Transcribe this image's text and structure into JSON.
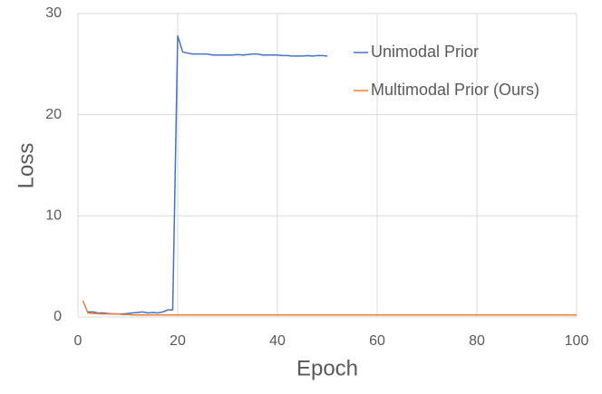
{
  "chart_data": {
    "type": "line",
    "xlabel": "Epoch",
    "ylabel": "Loss",
    "x": [
      1,
      2,
      3,
      4,
      5,
      6,
      7,
      8,
      9,
      10,
      11,
      12,
      13,
      14,
      15,
      16,
      17,
      18,
      19,
      20,
      21,
      22,
      23,
      24,
      25,
      26,
      27,
      28,
      29,
      30,
      31,
      32,
      33,
      34,
      35,
      36,
      37,
      38,
      39,
      40,
      41,
      42,
      43,
      44,
      45,
      46,
      47,
      48,
      49,
      50,
      51,
      52,
      53,
      54,
      55,
      56,
      57,
      58,
      59,
      60,
      61,
      62,
      63,
      64,
      65,
      66,
      67,
      68,
      69,
      70,
      71,
      72,
      73,
      74,
      75,
      76,
      77,
      78,
      79,
      80,
      81,
      82,
      83,
      84,
      85,
      86,
      87,
      88,
      89,
      90,
      91,
      92,
      93,
      94,
      95,
      96,
      97,
      98,
      99,
      100
    ],
    "series": [
      {
        "name": "Unimodal Prior",
        "color": "#4472c4",
        "values": [
          null,
          0.5,
          0.5,
          0.4,
          0.4,
          0.35,
          0.3,
          0.3,
          0.3,
          0.35,
          0.4,
          0.45,
          0.5,
          0.4,
          0.45,
          0.4,
          0.5,
          0.7,
          0.7,
          27.8,
          26.2,
          26.1,
          26.0,
          26.0,
          26.0,
          26.0,
          25.9,
          25.9,
          25.9,
          25.9,
          25.9,
          25.95,
          25.9,
          25.95,
          26.0,
          26.0,
          25.9,
          25.9,
          25.9,
          25.9,
          25.85,
          25.85,
          25.8,
          25.8,
          25.8,
          25.85,
          25.8,
          25.85,
          25.85,
          25.8,
          null,
          null,
          null,
          null,
          null,
          null,
          null,
          null,
          null,
          null,
          null,
          null,
          null,
          null,
          null,
          null,
          null,
          null,
          null,
          null,
          null,
          null,
          null,
          null,
          null,
          null,
          null,
          null,
          null,
          null,
          null,
          null,
          null,
          null,
          null,
          null,
          null,
          null,
          null,
          null,
          null,
          null,
          null,
          null,
          null,
          null,
          null,
          null,
          null,
          null
        ]
      },
      {
        "name": "Multimodal Prior (Ours)",
        "color": "#ed7d31",
        "values": [
          1.6,
          0.4,
          0.35,
          0.35,
          0.3,
          0.3,
          0.3,
          0.3,
          0.25,
          0.25,
          0.2,
          0.2,
          0.2,
          0.2,
          0.2,
          0.2,
          0.2,
          0.2,
          0.2,
          0.2,
          0.2,
          0.2,
          0.2,
          0.2,
          0.2,
          0.2,
          0.2,
          0.2,
          0.2,
          0.2,
          0.2,
          0.2,
          0.2,
          0.2,
          0.2,
          0.2,
          0.2,
          0.2,
          0.2,
          0.2,
          0.2,
          0.2,
          0.2,
          0.2,
          0.2,
          0.2,
          0.2,
          0.2,
          0.2,
          0.2,
          0.2,
          0.2,
          0.2,
          0.2,
          0.2,
          0.2,
          0.2,
          0.2,
          0.2,
          0.2,
          0.2,
          0.2,
          0.2,
          0.2,
          0.2,
          0.2,
          0.2,
          0.2,
          0.2,
          0.2,
          0.2,
          0.2,
          0.2,
          0.2,
          0.2,
          0.2,
          0.2,
          0.2,
          0.2,
          0.2,
          0.2,
          0.2,
          0.2,
          0.2,
          0.2,
          0.2,
          0.2,
          0.2,
          0.2,
          0.2,
          0.2,
          0.2,
          0.2,
          0.2,
          0.2,
          0.2,
          0.2,
          0.2,
          0.2,
          0.2
        ]
      }
    ],
    "xlim": [
      0,
      100
    ],
    "xticks": [
      0,
      20,
      40,
      60,
      80,
      100
    ],
    "ylim": [
      0,
      30
    ],
    "yticks": [
      0,
      10,
      20,
      30
    ],
    "grid": true,
    "legend": "upper right"
  }
}
